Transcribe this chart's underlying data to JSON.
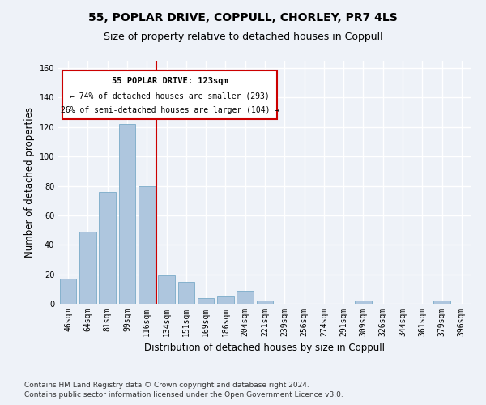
{
  "title_line1": "55, POPLAR DRIVE, COPPULL, CHORLEY, PR7 4LS",
  "title_line2": "Size of property relative to detached houses in Coppull",
  "xlabel": "Distribution of detached houses by size in Coppull",
  "ylabel": "Number of detached properties",
  "bar_color": "#aec6de",
  "bar_edge_color": "#7aaac8",
  "categories": [
    "46sqm",
    "64sqm",
    "81sqm",
    "99sqm",
    "116sqm",
    "134sqm",
    "151sqm",
    "169sqm",
    "186sqm",
    "204sqm",
    "221sqm",
    "239sqm",
    "256sqm",
    "274sqm",
    "291sqm",
    "309sqm",
    "326sqm",
    "344sqm",
    "361sqm",
    "379sqm",
    "396sqm"
  ],
  "values": [
    17,
    49,
    76,
    122,
    80,
    19,
    15,
    4,
    5,
    9,
    2,
    0,
    0,
    0,
    0,
    2,
    0,
    0,
    0,
    2,
    0
  ],
  "ylim": [
    0,
    165
  ],
  "yticks": [
    0,
    20,
    40,
    60,
    80,
    100,
    120,
    140,
    160
  ],
  "property_line_x": 4.5,
  "annotation_text_line1": "55 POPLAR DRIVE: 123sqm",
  "annotation_text_line2": "← 74% of detached houses are smaller (293)",
  "annotation_text_line3": "26% of semi-detached houses are larger (104) →",
  "footnote_line1": "Contains HM Land Registry data © Crown copyright and database right 2024.",
  "footnote_line2": "Contains public sector information licensed under the Open Government Licence v3.0.",
  "bg_color": "#eef2f8",
  "plot_bg_color": "#eef2f8",
  "grid_color": "#ffffff",
  "title_fontsize": 10,
  "subtitle_fontsize": 9,
  "axis_label_fontsize": 8.5,
  "tick_fontsize": 7,
  "footnote_fontsize": 6.5,
  "red_line_color": "#cc0000",
  "annotation_border_color": "#cc0000"
}
